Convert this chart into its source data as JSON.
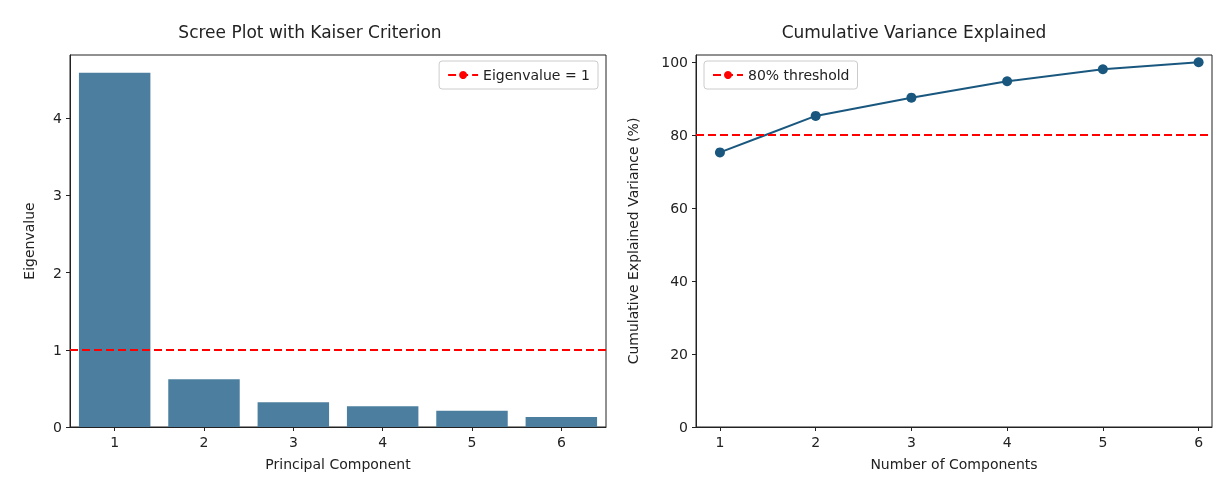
{
  "chart_data": [
    {
      "type": "bar",
      "title": "Scree Plot with Kaiser Criterion",
      "xlabel": "Principal Component",
      "ylabel": "Eigenvalue",
      "categories": [
        "1",
        "2",
        "3",
        "4",
        "5",
        "6"
      ],
      "series": [
        {
          "color": "#4c7f9f",
          "values": [
            4.59,
            0.62,
            0.32,
            0.27,
            0.21,
            0.13
          ]
        }
      ],
      "ylim": [
        0,
        4.82
      ],
      "yticks": [
        0,
        1,
        2,
        3,
        4
      ],
      "grid": false,
      "legend": "top right",
      "ref_lines": [
        {
          "axis": "y",
          "value": 1,
          "label": "Eigenvalue = 1",
          "color": "#ff0000",
          "line_style": "dashed"
        }
      ]
    },
    {
      "type": "line",
      "title": "Cumulative Variance Explained",
      "xlabel": "Number of Components",
      "ylabel": "Cumulative Explained Variance (%)",
      "x": [
        1,
        2,
        3,
        4,
        5,
        6
      ],
      "series": [
        {
          "color": "#19577f",
          "values": [
            75.3,
            85.3,
            90.3,
            94.8,
            98.1,
            100
          ]
        }
      ],
      "xlim": [
        0.75,
        6.14
      ],
      "xticks": [
        1,
        2,
        3,
        4,
        5,
        6
      ],
      "ylim": [
        0,
        102
      ],
      "yticks": [
        0,
        20,
        40,
        60,
        80,
        100
      ],
      "grid": false,
      "legend": "top left",
      "marker": "circle",
      "line_style": "solid",
      "ref_lines": [
        {
          "axis": "y",
          "value": 80,
          "label": "80% threshold",
          "color": "#ff0000",
          "line_style": "dashed"
        }
      ]
    }
  ]
}
